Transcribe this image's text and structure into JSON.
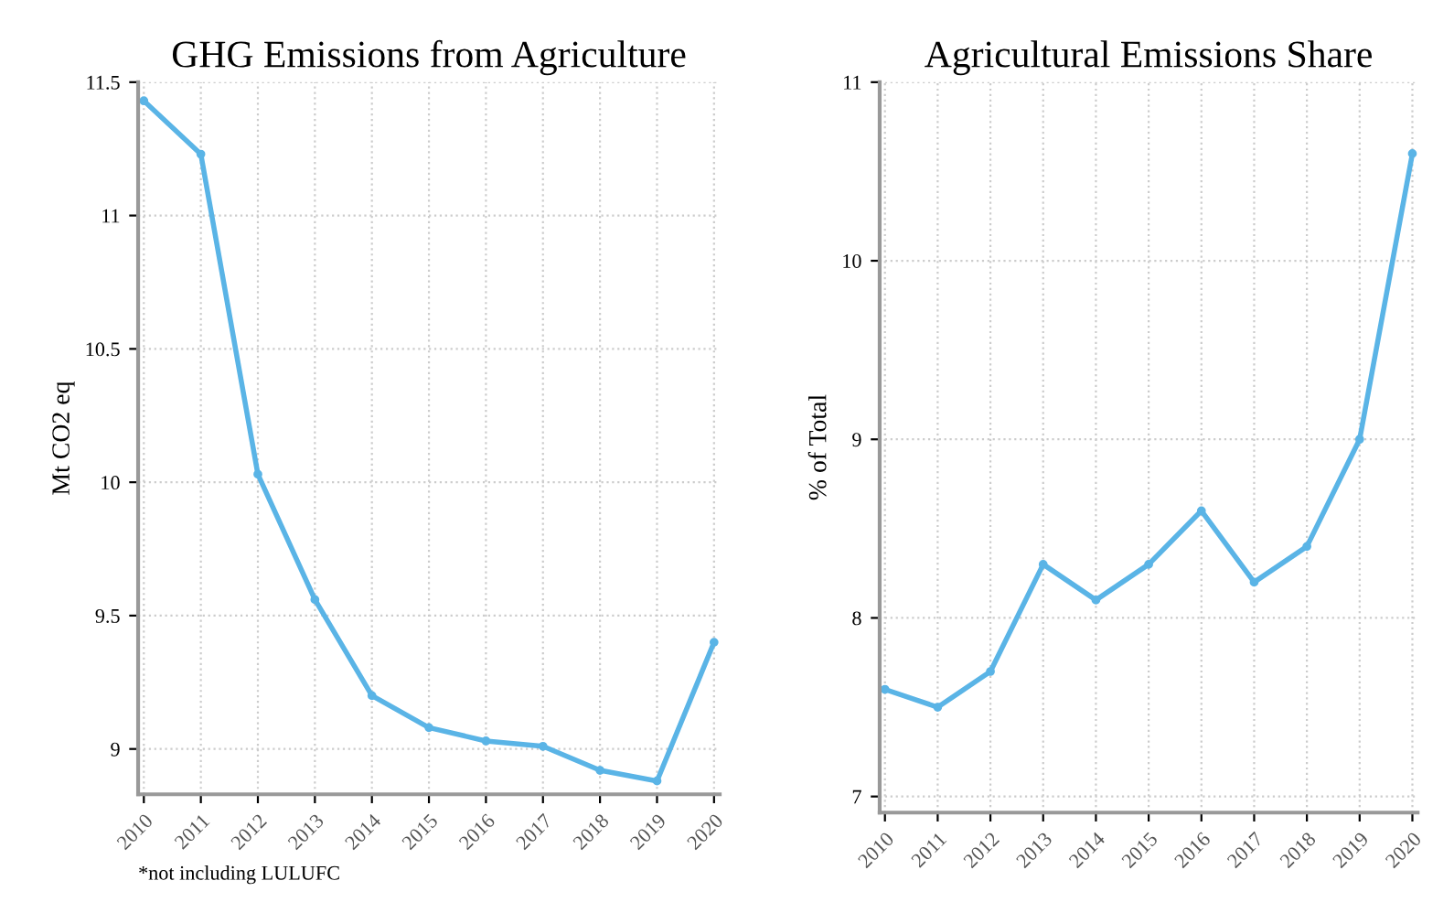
{
  "chart_data": [
    {
      "type": "line",
      "title": "GHG Emissions from Agriculture",
      "ylabel": "Mt CO2 eq",
      "categories": [
        "2010",
        "2011",
        "2012",
        "2013",
        "2014",
        "2015",
        "2016",
        "2017",
        "2018",
        "2019",
        "2020"
      ],
      "series": [
        {
          "color": "#5ab4e6",
          "values": [
            11.43,
            11.23,
            10.03,
            9.56,
            9.2,
            9.08,
            9.03,
            9.01,
            8.92,
            8.88,
            9.4
          ]
        }
      ],
      "ylim": [
        8.83,
        11.5
      ],
      "yticks": [
        9,
        9.5,
        10,
        10.5,
        11,
        11.5
      ],
      "grid": true,
      "marker": "circle",
      "line_style": "solid",
      "annotations": [
        "*not including LULUFC"
      ]
    },
    {
      "type": "line",
      "title": "Agricultural Emissions Share",
      "ylabel": "% of Total",
      "categories": [
        "2010",
        "2011",
        "2012",
        "2013",
        "2014",
        "2015",
        "2016",
        "2017",
        "2018",
        "2019",
        "2020"
      ],
      "series": [
        {
          "color": "#5ab4e6",
          "values": [
            7.6,
            7.5,
            7.7,
            8.3,
            8.1,
            8.3,
            8.6,
            8.2,
            8.4,
            9.0,
            10.6
          ]
        }
      ],
      "ylim": [
        6.91,
        11
      ],
      "yticks": [
        7,
        8,
        9,
        10,
        11
      ],
      "grid": true,
      "marker": "circle",
      "line_style": "solid"
    }
  ]
}
